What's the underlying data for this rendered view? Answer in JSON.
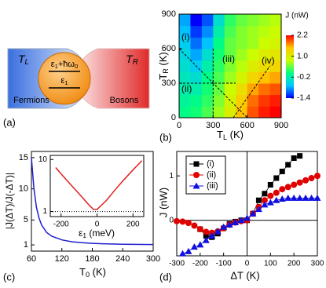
{
  "schematic": {
    "T_L": [
      "T",
      "L"
    ],
    "fermions": "Fermions",
    "levels": [
      [
        "ε",
        "1",
        "+ħω",
        "0"
      ],
      [
        "ε",
        "1"
      ]
    ],
    "T_R": [
      "T",
      "R"
    ],
    "bosons": "Bosons",
    "panel_label": "(a)"
  },
  "chart_data": [
    {
      "type": "heatmap",
      "panel_label": "(b)",
      "xlabel": [
        "T",
        "L",
        " (K)"
      ],
      "ylabel": [
        "T",
        "R",
        " (K)"
      ],
      "zlabel": "J (nW)",
      "x": [
        50,
        150,
        250,
        350,
        450,
        550,
        650,
        750,
        850
      ],
      "y": [
        50,
        150,
        250,
        350,
        450,
        550,
        650,
        750,
        850
      ],
      "z": [
        [
          0.0,
          0.1,
          0.3,
          0.6,
          1.0,
          1.5,
          1.9,
          2.1,
          2.2
        ],
        [
          -0.1,
          0.0,
          0.2,
          0.5,
          0.9,
          1.4,
          1.8,
          2.0,
          2.1
        ],
        [
          -0.2,
          -0.2,
          0.1,
          0.4,
          0.8,
          1.2,
          1.6,
          1.8,
          1.9
        ],
        [
          -0.3,
          -0.4,
          0.0,
          0.3,
          0.6,
          0.9,
          1.3,
          1.5,
          1.6
        ],
        [
          -0.4,
          -0.6,
          -0.2,
          0.2,
          0.5,
          0.7,
          1.0,
          1.2,
          1.3
        ],
        [
          -0.5,
          -0.8,
          -0.4,
          0.1,
          0.4,
          0.6,
          0.8,
          1.0,
          1.1
        ],
        [
          -0.6,
          -1.0,
          -0.7,
          0.0,
          0.4,
          0.5,
          0.6,
          0.8,
          0.9
        ],
        [
          -0.7,
          -1.2,
          -0.9,
          -0.2,
          0.3,
          0.5,
          0.6,
          0.7,
          0.8
        ],
        [
          -0.8,
          -1.4,
          -1.1,
          -0.4,
          0.2,
          0.4,
          0.5,
          0.6,
          0.7
        ]
      ],
      "xlim": [
        0,
        900
      ],
      "ylim": [
        0,
        900
      ],
      "xticks": [
        0,
        300,
        600,
        900
      ],
      "yticks": [
        0,
        300,
        600,
        900
      ],
      "zlim": [
        -1.4,
        2.2
      ],
      "zticks": [
        2.2,
        {
          "value": 1,
          "label": "1.0"
        },
        -0.2,
        -1.4
      ],
      "colorscale": [
        "#0000ff",
        "#00c8ff",
        "#00ff80",
        "#c8ff00",
        "#ffc800",
        "#ff0000"
      ],
      "annotations": [
        "(i)",
        "(ii)",
        "(iii)",
        "(iv)"
      ]
    },
    {
      "type": "line",
      "panel_label": "(c)",
      "xlabel": [
        "T",
        "0",
        " (K)"
      ],
      "ylabel": "|J(ΔT)/J(-ΔT)|",
      "color": "#1f1fd0",
      "x": [
        60,
        65,
        70,
        75,
        80,
        90,
        100,
        120,
        140,
        160,
        180,
        200,
        240,
        300
      ],
      "y": [
        15,
        10,
        7,
        5.3,
        4.2,
        3.0,
        2.4,
        1.8,
        1.5,
        1.35,
        1.25,
        1.18,
        1.1,
        1.05
      ],
      "xlim": [
        60,
        300
      ],
      "ylim": [
        0,
        16
      ],
      "xticks": [
        60,
        120,
        180,
        240,
        300
      ],
      "yticks": [
        1,
        5,
        10,
        15
      ]
    },
    {
      "type": "line",
      "inset": true,
      "xlabel": [
        "ε",
        "1",
        " (meV)"
      ],
      "color": "#e02020",
      "x": [
        -230,
        -200,
        -150,
        -100,
        -50,
        -20,
        0,
        50,
        100,
        150,
        200,
        250
      ],
      "y": [
        7,
        5.3,
        3.4,
        2.2,
        1.4,
        1.1,
        1.1,
        1.6,
        2.6,
        4.1,
        6.3,
        9.5
      ],
      "xlim": [
        -260,
        260
      ],
      "ylim": [
        0.8,
        12
      ],
      "ylog": true,
      "xticks": [
        -200,
        0,
        200
      ],
      "yticks": [
        1,
        10
      ],
      "hline": 1
    },
    {
      "type": "scatter",
      "panel_label": "(d)",
      "xlabel": "ΔT (K)",
      "ylabel": "J (nW)",
      "legend_loc": "upper left",
      "zero_lines": true,
      "xlim": [
        -300,
        300
      ],
      "ylim": [
        -0.8,
        1.55
      ],
      "xticks": [
        -300,
        -200,
        -100,
        0,
        100,
        200,
        300
      ],
      "yticks": [
        0,
        1
      ],
      "series": [
        {
          "name": "(i)",
          "color": "#000000",
          "marker": "square",
          "x": [
            -200,
            -175,
            -150,
            -125,
            -100,
            -75,
            -50,
            -25,
            0,
            25,
            50,
            75,
            100,
            125,
            150,
            175,
            200,
            225
          ],
          "y": [
            -0.2,
            -0.35,
            -0.38,
            -0.3,
            -0.18,
            -0.08,
            -0.03,
            0,
            0,
            0.15,
            0.45,
            0.6,
            0.8,
            0.95,
            1.1,
            1.25,
            1.4,
            1.45
          ]
        },
        {
          "name": "(ii)",
          "color": "#e00000",
          "marker": "circle",
          "x": [
            -300,
            -275,
            -250,
            -225,
            -200,
            -175,
            -150,
            -125,
            -100,
            -75,
            -50,
            -25,
            0,
            25,
            50,
            75,
            100,
            125,
            150,
            175,
            200,
            225,
            250,
            275,
            300
          ],
          "y": [
            -0.02,
            -0.03,
            -0.06,
            -0.12,
            -0.2,
            -0.26,
            -0.28,
            -0.25,
            -0.18,
            -0.1,
            -0.05,
            -0.02,
            0,
            0.15,
            0.3,
            0.45,
            0.55,
            0.62,
            0.7,
            0.75,
            0.8,
            0.85,
            0.9,
            0.95,
            1.0
          ]
        },
        {
          "name": "(iii)",
          "color": "#1010e0",
          "marker": "triangle",
          "x": [
            -275,
            -250,
            -225,
            -200,
            -175,
            -150,
            -125,
            -100,
            -75,
            -50,
            -25,
            0,
            25,
            50,
            75,
            100,
            125,
            150,
            175,
            200,
            225,
            250,
            275,
            300
          ],
          "y": [
            -0.75,
            -0.7,
            -0.6,
            -0.55,
            -0.45,
            -0.35,
            -0.25,
            -0.15,
            -0.1,
            -0.05,
            0,
            0.05,
            0.15,
            0.25,
            0.35,
            0.4,
            0.45,
            0.48,
            0.5,
            0.5,
            0.5,
            0.5,
            0.5,
            0.5
          ]
        }
      ]
    }
  ]
}
